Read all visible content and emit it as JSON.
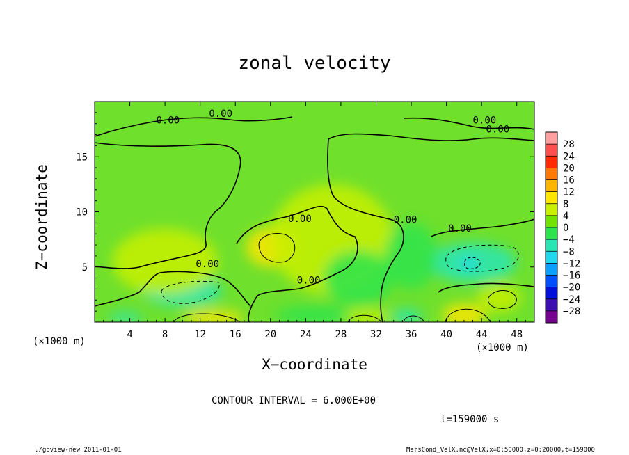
{
  "chart_data": {
    "type": "heatmap",
    "title": "zonal velocity",
    "xlabel": "X−coordinate",
    "ylabel": "Z−coordinate",
    "x_unit_left": "(×1000 m)",
    "x_unit_right": "(×1000 m)",
    "xlim": [
      0,
      50
    ],
    "ylim": [
      0,
      20
    ],
    "x_ticks": [
      "4",
      "8",
      "12",
      "16",
      "20",
      "24",
      "28",
      "32",
      "36",
      "40",
      "44",
      "48"
    ],
    "x_tick_values": [
      4,
      8,
      12,
      16,
      20,
      24,
      28,
      32,
      36,
      40,
      44,
      48
    ],
    "y_ticks": [
      "5",
      "10",
      "15"
    ],
    "y_tick_values": [
      5,
      10,
      15
    ],
    "colorbar": {
      "labels": [
        "28",
        "24",
        "20",
        "16",
        "12",
        "8",
        "4",
        "0",
        "−4",
        "−8",
        "−12",
        "−16",
        "−20",
        "−24",
        "−28"
      ],
      "colors": [
        "#ff9fa0",
        "#ff5050",
        "#ff2a00",
        "#ff7a00",
        "#ffb400",
        "#ffe600",
        "#c8f000",
        "#72e200",
        "#2ee44c",
        "#28e6b4",
        "#22d8ee",
        "#0aa0ff",
        "#0050ff",
        "#0010d8",
        "#3c10b0",
        "#780090"
      ]
    },
    "contour_labels": [
      {
        "text": "0.00",
        "x": 7,
        "y": 18.0
      },
      {
        "text": "0.00",
        "x": 13,
        "y": 18.6
      },
      {
        "text": "0.00",
        "x": 43,
        "y": 18.0
      },
      {
        "text": "0.00",
        "x": 44.5,
        "y": 17.2
      },
      {
        "text": "0.00",
        "x": 22,
        "y": 9.1
      },
      {
        "text": "0.00",
        "x": 34,
        "y": 9.0
      },
      {
        "text": "0.00",
        "x": 40.2,
        "y": 8.2
      },
      {
        "text": "0.00",
        "x": 11.5,
        "y": 5.0
      },
      {
        "text": "0.00",
        "x": 23,
        "y": 3.5
      }
    ],
    "blobs": [
      {
        "x": 20,
        "y": 6.8,
        "rx": 2.8,
        "ry": 1.8,
        "value": 7
      },
      {
        "x": 10,
        "y": 2.8,
        "rx": 4.5,
        "ry": 1.4,
        "value": -7
      },
      {
        "x": 43,
        "y": 5.4,
        "rx": 5,
        "ry": 1.8,
        "value": -7
      },
      {
        "x": 42.5,
        "y": 5.3,
        "rx": 1.1,
        "ry": 0.6,
        "value": -12
      },
      {
        "x": 46,
        "y": 2.2,
        "rx": 2.5,
        "ry": 1.3,
        "value": 6
      },
      {
        "x": 42,
        "y": 0.6,
        "rx": 2.5,
        "ry": 1.1,
        "value": 8
      },
      {
        "x": 13.5,
        "y": 0.4,
        "rx": 3.5,
        "ry": 0.7,
        "value": 9
      },
      {
        "x": 35.5,
        "y": 0.5,
        "rx": 1.8,
        "ry": 0.7,
        "value": -9
      },
      {
        "x": 25,
        "y": 0.6,
        "rx": 4.5,
        "ry": 0.9,
        "value": -5
      },
      {
        "x": 31,
        "y": 0.5,
        "rx": 2.5,
        "ry": 0.7,
        "value": 6
      },
      {
        "x": 3.5,
        "y": 0.4,
        "rx": 2,
        "ry": 0.5,
        "value": -6
      },
      {
        "x": 8,
        "y": 5.5,
        "rx": 6,
        "ry": 3,
        "value": 4
      },
      {
        "x": 27,
        "y": 7.5,
        "rx": 7,
        "ry": 5,
        "value": 3
      },
      {
        "x": 30,
        "y": 4,
        "rx": 4,
        "ry": 2.5,
        "value": -4
      },
      {
        "x": 36,
        "y": 6,
        "rx": 3,
        "ry": 3,
        "value": -3
      }
    ]
  },
  "contour_interval": "CONTOUR INTERVAL = 6.000E+00",
  "time_label": "t=159000 s",
  "footer_left": "./gpview-new  2011-01-01",
  "footer_right": "MarsCond_VelX.nc@VelX,x=0:50000,z=0:20000,t=159000"
}
